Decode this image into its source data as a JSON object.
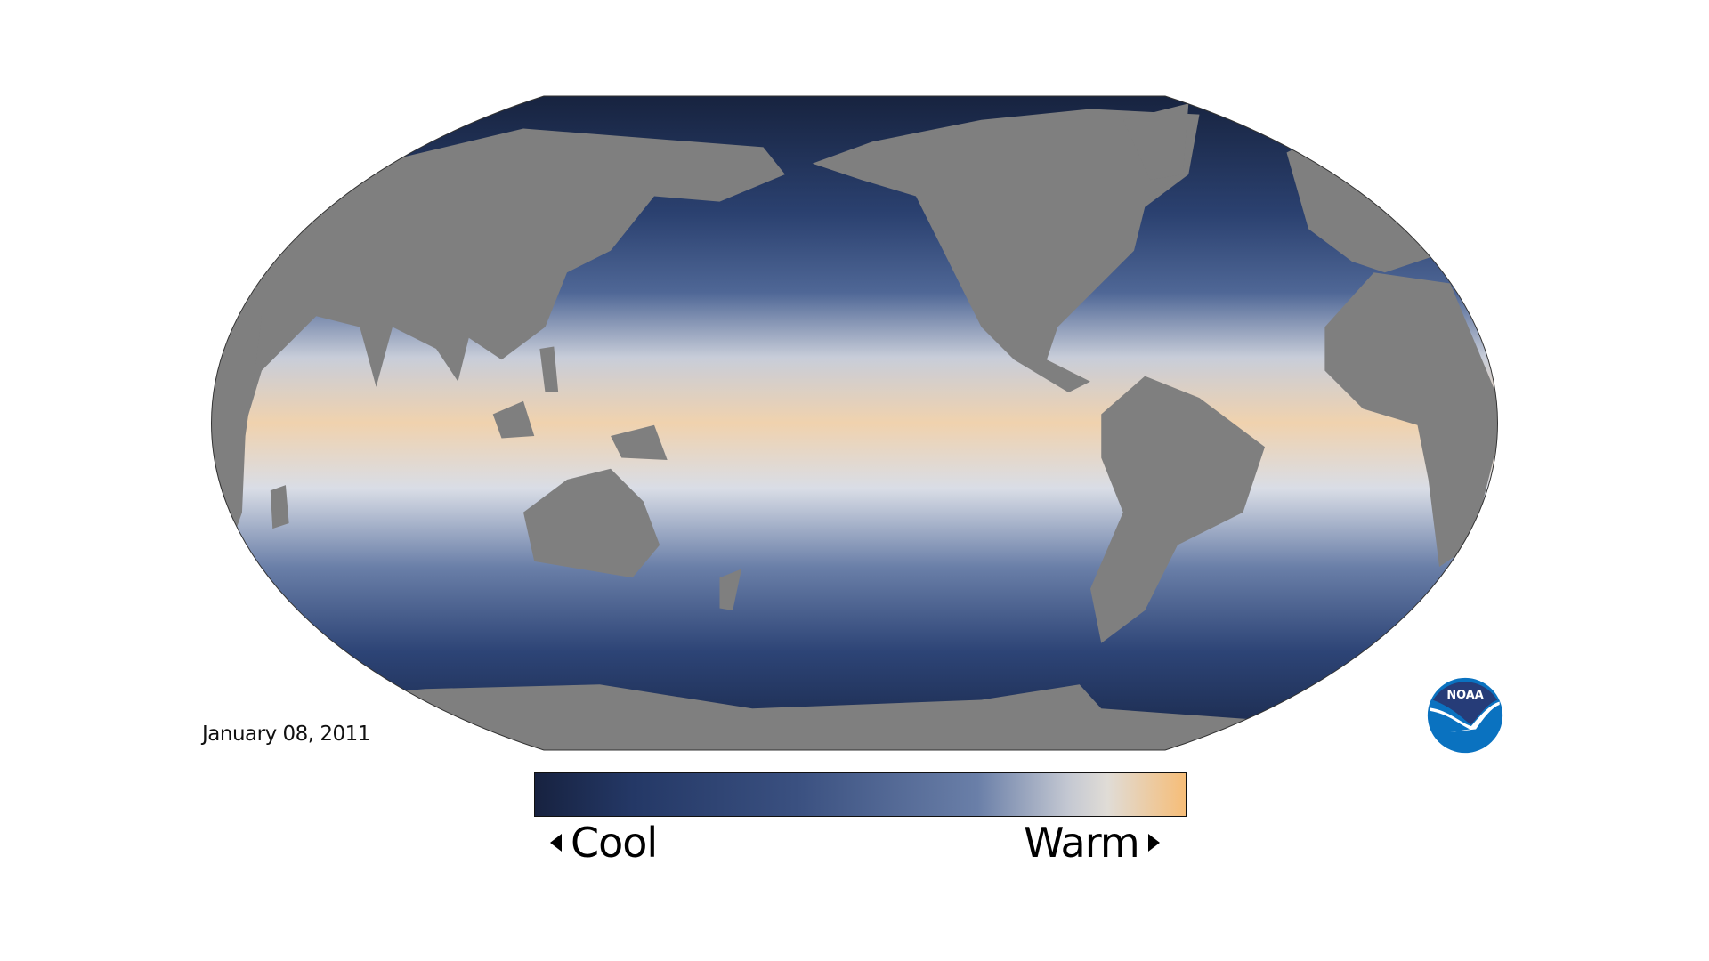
{
  "map": {
    "date": "January 08, 2011",
    "land_color": "#7f7f7f",
    "ocean_gradient": [
      "#17233f",
      "#2b4170",
      "#4f6796",
      "#c8cdd9",
      "#f3c996",
      "#d9dde6",
      "#6a7fa8",
      "#2d4476",
      "#182646"
    ]
  },
  "legend": {
    "cool_label": "Cool",
    "warm_label": "Warm",
    "colors": [
      "#172240",
      "#243866",
      "#3a5080",
      "#6a7fa8",
      "#c4c8d2",
      "#e0dcd6",
      "#f6bd78"
    ]
  },
  "logo": {
    "text": "NOAA",
    "colors": {
      "top": "#263c78",
      "bottom": "#0a72c0"
    }
  }
}
